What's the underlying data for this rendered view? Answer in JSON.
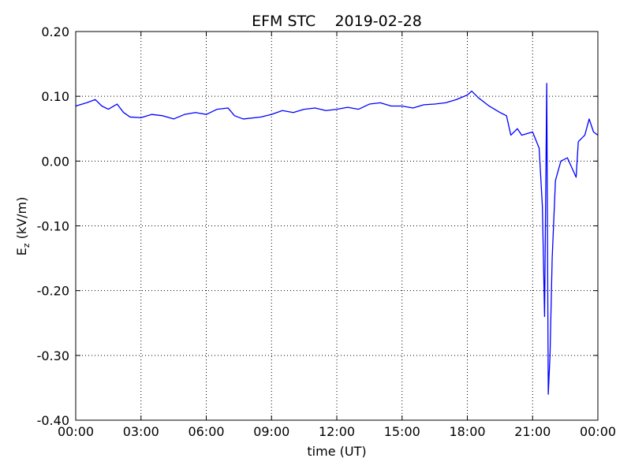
{
  "chart_data": {
    "type": "line",
    "title": "EFM STC    2019-02-28",
    "xlabel": "time (UT)",
    "ylabel": {
      "base": "E",
      "sub": "z",
      "unit": " (kV/m)"
    },
    "x": [
      0,
      0.5,
      0.9,
      1.2,
      1.5,
      1.9,
      2.2,
      2.5,
      3,
      3.5,
      4,
      4.5,
      5,
      5.5,
      6,
      6.5,
      7,
      7.3,
      7.7,
      8.5,
      9,
      9.5,
      10,
      10.5,
      11,
      11.5,
      12,
      12.5,
      13,
      13.5,
      14,
      14.5,
      15,
      15.5,
      16,
      16.5,
      17,
      17.5,
      18,
      18.2,
      18.5,
      19,
      19.5,
      19.8,
      20,
      20.3,
      20.5,
      21,
      21.3,
      21.45,
      21.55,
      21.65,
      21.72,
      21.8,
      21.9,
      22.05,
      22.3,
      22.6,
      23,
      23.1,
      23.4,
      23.6,
      23.8,
      24
    ],
    "series": [
      {
        "name": "Ez",
        "color": "#0000ff",
        "values": [
          0.085,
          0.09,
          0.095,
          0.085,
          0.08,
          0.088,
          0.075,
          0.068,
          0.067,
          0.072,
          0.07,
          0.065,
          0.072,
          0.075,
          0.072,
          0.08,
          0.082,
          0.07,
          0.065,
          0.068,
          0.072,
          0.078,
          0.075,
          0.08,
          0.082,
          0.078,
          0.08,
          0.083,
          0.08,
          0.088,
          0.09,
          0.085,
          0.085,
          0.082,
          0.087,
          0.088,
          0.09,
          0.095,
          0.102,
          0.108,
          0.098,
          0.085,
          0.075,
          0.07,
          0.04,
          0.05,
          0.04,
          0.045,
          0.02,
          -0.07,
          -0.24,
          0.12,
          -0.36,
          -0.3,
          -0.15,
          -0.03,
          0.0,
          0.005,
          -0.025,
          0.03,
          0.04,
          0.065,
          0.045,
          0.04
        ]
      }
    ],
    "xlim": [
      0,
      24
    ],
    "xticks": [
      {
        "value": 0,
        "label": "00:00"
      },
      {
        "value": 3,
        "label": "03:00"
      },
      {
        "value": 6,
        "label": "06:00"
      },
      {
        "value": 9,
        "label": "09:00"
      },
      {
        "value": 12,
        "label": "12:00"
      },
      {
        "value": 15,
        "label": "15:00"
      },
      {
        "value": 18,
        "label": "18:00"
      },
      {
        "value": 21,
        "label": "21:00"
      },
      {
        "value": 24,
        "label": "00:00"
      }
    ],
    "ylim": [
      -0.4,
      0.2
    ],
    "yticks": [
      {
        "value": -0.4,
        "label": "-0.40"
      },
      {
        "value": -0.3,
        "label": "-0.30"
      },
      {
        "value": -0.2,
        "label": "-0.20"
      },
      {
        "value": -0.1,
        "label": "-0.10"
      },
      {
        "value": 0,
        "label": "0.00"
      },
      {
        "value": 0.1,
        "label": "0.10"
      },
      {
        "value": 0.2,
        "label": "0.20"
      }
    ],
    "grid": true
  }
}
